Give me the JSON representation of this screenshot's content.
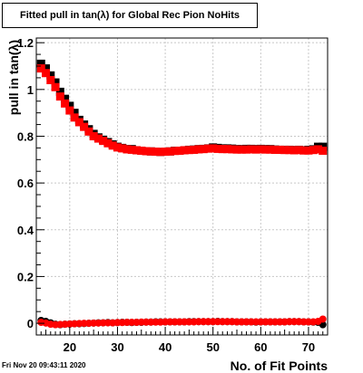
{
  "header": {
    "title": "Fitted pull in tan(λ) for Global Rec Pion NoHits"
  },
  "footer": {
    "timestamp": "Fri Nov 20 09:43:11 2020"
  },
  "chart_data": {
    "type": "scatter",
    "title": "Fitted pull in tan(λ) for Global Rec Pion NoHits",
    "xlabel": "No. of Fit Points",
    "ylabel": "pull in tan(λ)",
    "xlim": [
      13,
      74
    ],
    "ylim": [
      -0.05,
      1.22
    ],
    "x_ticks": [
      20,
      30,
      40,
      50,
      60,
      70
    ],
    "y_ticks": [
      0,
      0.2,
      0.4,
      0.6,
      0.8,
      1,
      1.2
    ],
    "y_tick_labels": [
      "0",
      "0.2",
      "0.4",
      "0.6",
      "0.8",
      "1",
      "1.2"
    ],
    "grid": true,
    "series": [
      {
        "color": "#000000",
        "marker": "square",
        "x": [
          14,
          15,
          16,
          17,
          18,
          19,
          20,
          21,
          22,
          23,
          24,
          25,
          26,
          27,
          28,
          29,
          30,
          31,
          32,
          33,
          34,
          35,
          36,
          37,
          38,
          39,
          40,
          41,
          42,
          43,
          44,
          45,
          46,
          47,
          48,
          49,
          50,
          51,
          52,
          53,
          54,
          55,
          56,
          57,
          58,
          59,
          60,
          61,
          62,
          63,
          64,
          65,
          66,
          67,
          68,
          69,
          70,
          71,
          72,
          73
        ],
        "y": [
          1.11,
          1.09,
          1.06,
          1.03,
          0.99,
          0.96,
          0.93,
          0.9,
          0.87,
          0.85,
          0.83,
          0.81,
          0.795,
          0.785,
          0.775,
          0.765,
          0.755,
          0.75,
          0.745,
          0.745,
          0.74,
          0.738,
          0.736,
          0.735,
          0.734,
          0.733,
          0.734,
          0.735,
          0.738,
          0.738,
          0.74,
          0.742,
          0.743,
          0.745,
          0.746,
          0.748,
          0.752,
          0.75,
          0.748,
          0.748,
          0.747,
          0.745,
          0.745,
          0.746,
          0.746,
          0.745,
          0.746,
          0.745,
          0.745,
          0.743,
          0.742,
          0.742,
          0.742,
          0.741,
          0.742,
          0.74,
          0.742,
          0.744,
          0.755,
          0.755
        ]
      },
      {
        "color": "#ff0000",
        "marker": "square",
        "x": [
          14,
          15,
          16,
          17,
          18,
          19,
          20,
          21,
          22,
          23,
          24,
          25,
          26,
          27,
          28,
          29,
          30,
          31,
          32,
          33,
          34,
          35,
          36,
          37,
          38,
          39,
          40,
          41,
          42,
          43,
          44,
          45,
          46,
          47,
          48,
          49,
          50,
          51,
          52,
          53,
          54,
          55,
          56,
          57,
          58,
          59,
          60,
          61,
          62,
          63,
          64,
          65,
          66,
          67,
          68,
          69,
          70,
          71,
          72,
          73
        ],
        "y": [
          1.09,
          1.07,
          1.04,
          1.01,
          0.97,
          0.94,
          0.91,
          0.88,
          0.86,
          0.84,
          0.82,
          0.8,
          0.79,
          0.78,
          0.77,
          0.76,
          0.752,
          0.748,
          0.744,
          0.742,
          0.74,
          0.738,
          0.736,
          0.735,
          0.734,
          0.733,
          0.734,
          0.735,
          0.737,
          0.738,
          0.74,
          0.741,
          0.742,
          0.744,
          0.745,
          0.747,
          0.748,
          0.746,
          0.745,
          0.745,
          0.744,
          0.743,
          0.743,
          0.743,
          0.744,
          0.743,
          0.744,
          0.743,
          0.743,
          0.742,
          0.742,
          0.741,
          0.741,
          0.74,
          0.741,
          0.739,
          0.739,
          0.741,
          0.744,
          0.738
        ]
      },
      {
        "color": "#000000",
        "marker": "circle",
        "x": [
          14,
          15,
          16,
          17,
          18,
          19,
          20,
          21,
          22,
          23,
          24,
          25,
          26,
          27,
          28,
          29,
          30,
          31,
          32,
          33,
          34,
          35,
          36,
          37,
          38,
          39,
          40,
          41,
          42,
          43,
          44,
          45,
          46,
          47,
          48,
          49,
          50,
          51,
          52,
          53,
          54,
          55,
          56,
          57,
          58,
          59,
          60,
          61,
          62,
          63,
          64,
          65,
          66,
          67,
          68,
          69,
          70,
          71,
          72,
          73
        ],
        "y": [
          0.012,
          0.008,
          0.002,
          -0.004,
          -0.006,
          -0.004,
          -0.003,
          -0.002,
          -0.002,
          -0.001,
          0.0,
          0.001,
          0.002,
          0.002,
          0.003,
          0.002,
          0.003,
          0.004,
          0.004,
          0.003,
          0.004,
          0.004,
          0.005,
          0.005,
          0.006,
          0.006,
          0.006,
          0.006,
          0.006,
          0.006,
          0.006,
          0.007,
          0.007,
          0.007,
          0.007,
          0.007,
          0.007,
          0.008,
          0.007,
          0.007,
          0.007,
          0.006,
          0.006,
          0.006,
          0.006,
          0.005,
          0.006,
          0.006,
          0.006,
          0.006,
          0.006,
          0.006,
          0.007,
          0.007,
          0.007,
          0.006,
          0.006,
          0.005,
          0.004,
          -0.006
        ]
      },
      {
        "color": "#ff0000",
        "marker": "circle",
        "x": [
          14,
          15,
          16,
          17,
          18,
          19,
          20,
          21,
          22,
          23,
          24,
          25,
          26,
          27,
          28,
          29,
          30,
          31,
          32,
          33,
          34,
          35,
          36,
          37,
          38,
          39,
          40,
          41,
          42,
          43,
          44,
          45,
          46,
          47,
          48,
          49,
          50,
          51,
          52,
          53,
          54,
          55,
          56,
          57,
          58,
          59,
          60,
          61,
          62,
          63,
          64,
          65,
          66,
          67,
          68,
          69,
          70,
          71,
          72,
          73
        ],
        "y": [
          0.004,
          0.001,
          -0.004,
          -0.006,
          -0.005,
          -0.004,
          -0.003,
          -0.002,
          -0.001,
          0.0,
          0.0,
          0.001,
          0.001,
          0.002,
          0.002,
          0.002,
          0.003,
          0.003,
          0.004,
          0.004,
          0.004,
          0.005,
          0.005,
          0.005,
          0.005,
          0.005,
          0.006,
          0.006,
          0.006,
          0.006,
          0.006,
          0.006,
          0.006,
          0.007,
          0.007,
          0.007,
          0.007,
          0.007,
          0.007,
          0.007,
          0.007,
          0.006,
          0.006,
          0.006,
          0.006,
          0.006,
          0.006,
          0.006,
          0.006,
          0.006,
          0.006,
          0.006,
          0.007,
          0.007,
          0.007,
          0.006,
          0.006,
          0.006,
          0.008,
          0.018
        ]
      }
    ]
  }
}
